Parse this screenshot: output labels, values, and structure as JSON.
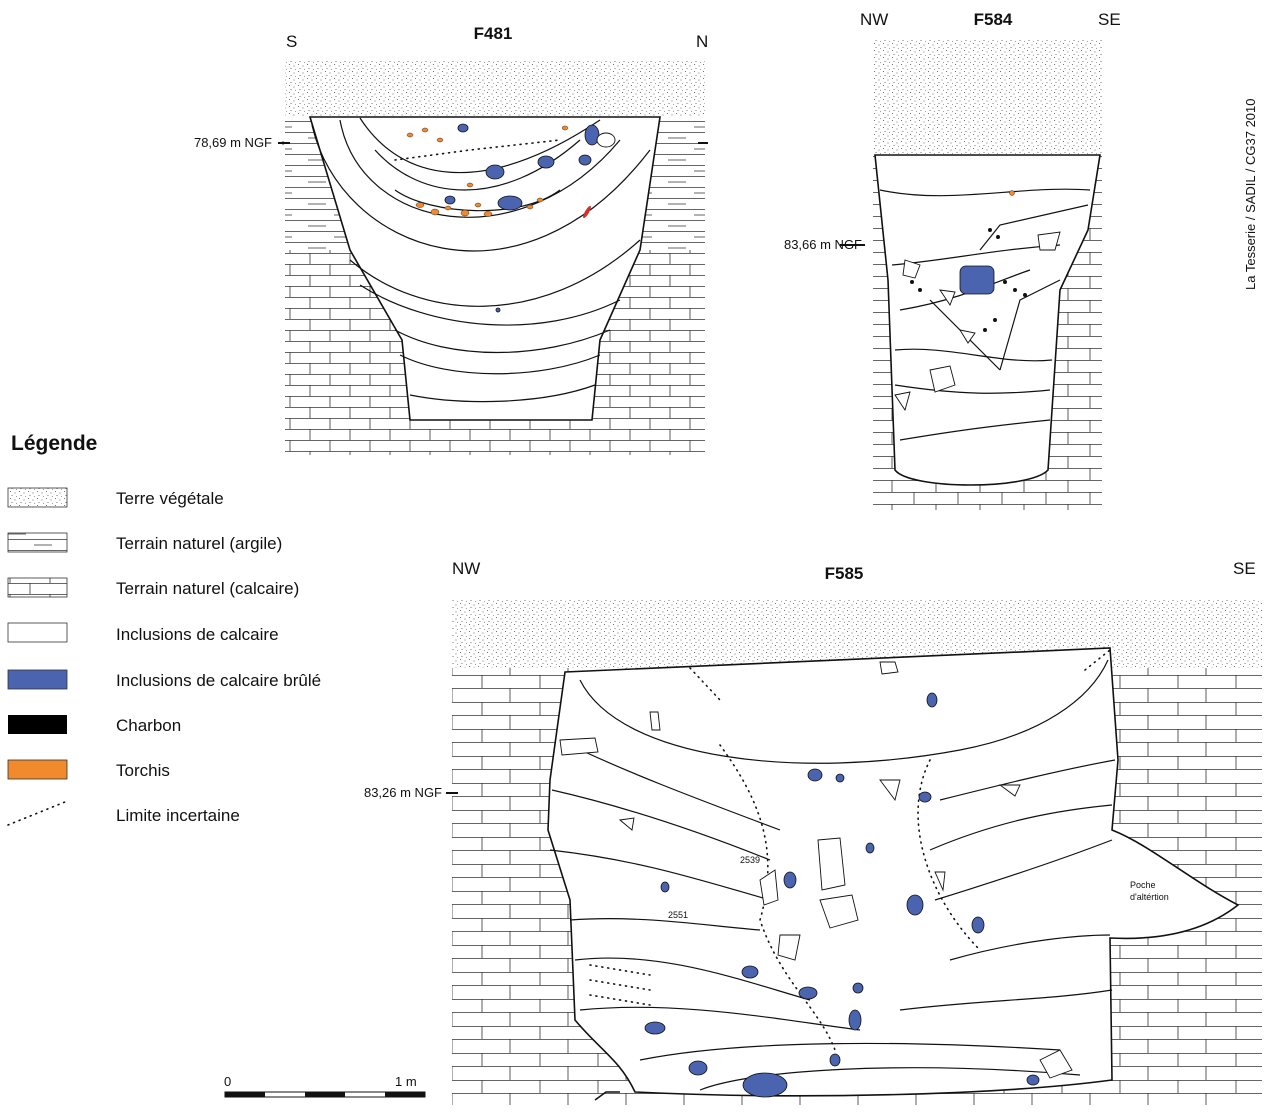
{
  "sections": [
    {
      "title": "F481",
      "left": "S",
      "right": "N",
      "level": "78,69 m NGF"
    },
    {
      "title": "F584",
      "left": "NW",
      "right": "SE",
      "level": "83,66 m NGF"
    },
    {
      "title": "F585",
      "left": "NW",
      "right": "SE",
      "level": "83,26 m NGF",
      "labels": [
        "2539",
        "2551",
        "Poche",
        "d'altértion"
      ]
    }
  ],
  "credit": "La Tesserie / SADIL / CG37 2010",
  "legend": {
    "title": "Légende",
    "items": [
      "Terre végétale",
      "Terrain naturel (argile)",
      "Terrain naturel (calcaire)",
      "Inclusions de calcaire",
      "Inclusions de calcaire brûlé",
      "Charbon",
      "Torchis",
      "Limite incertaine"
    ]
  },
  "scale": {
    "start": "0",
    "end": "1 m"
  }
}
